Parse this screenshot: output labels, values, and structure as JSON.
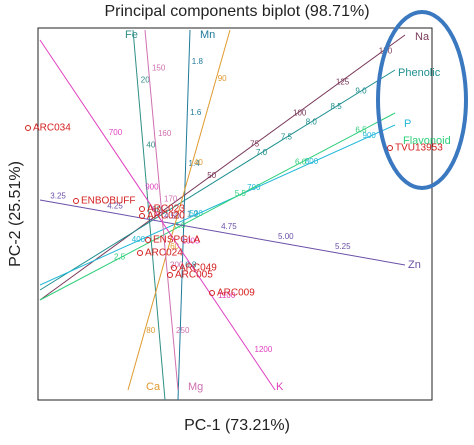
{
  "chart_data": {
    "type": "biplot",
    "title": "Principal components biplot (98.71%)",
    "x_label": "PC-1  (73.21%)",
    "y_label": "PC-2  (25.51%)",
    "variables": [
      {
        "name": "Fe",
        "color": "#2f8f86",
        "ticks": [
          "20",
          "40",
          "60"
        ]
      },
      {
        "name": "Mn",
        "color": "#1f7a9a",
        "ticks": [
          "1.8",
          "1.6",
          "1.4",
          "1.2",
          "0.8"
        ]
      },
      {
        "name": "Na",
        "color": "#7a3a5a",
        "ticks": [
          "150",
          "125",
          "100",
          "75",
          "50"
        ]
      },
      {
        "name": "Phenolic",
        "color": "#1f8f8f",
        "ticks": [
          "9.0",
          "8.5",
          "8.0",
          "7.5",
          "7.0"
        ]
      },
      {
        "name": "P",
        "color": "#22b8d8",
        "ticks": [
          "900",
          "800",
          "700",
          "500",
          "400"
        ]
      },
      {
        "name": "Flavonoid",
        "color": "#2ecf7a",
        "ticks": [
          "6.5",
          "6.0",
          "5.5",
          "3.0",
          "2.5"
        ]
      },
      {
        "name": "Zn",
        "color": "#6a4fa8",
        "ticks": [
          "3.25",
          "4.25",
          "4.50",
          "4.75",
          "5.00",
          "5.25"
        ]
      },
      {
        "name": "Ca",
        "color": "#e09a30",
        "ticks": [
          "80",
          "60",
          "40",
          "90"
        ]
      },
      {
        "name": "Mg",
        "color": "#d070b0",
        "ticks": [
          "150",
          "160",
          "170",
          "200",
          "250"
        ]
      },
      {
        "name": "K",
        "color": "#e040c0",
        "ticks": [
          "700",
          "900",
          "1000",
          "1100",
          "1200"
        ]
      }
    ],
    "genotypes": [
      "ARC034",
      "ENBOBUFF",
      "ARC023",
      "ARC020",
      "ENSPGLA",
      "ARC024",
      "ARC049",
      "ARC005",
      "ARC009",
      "TVU13953"
    ],
    "genotype_color": "#d42020",
    "highlight_color": "#3a78c0"
  }
}
